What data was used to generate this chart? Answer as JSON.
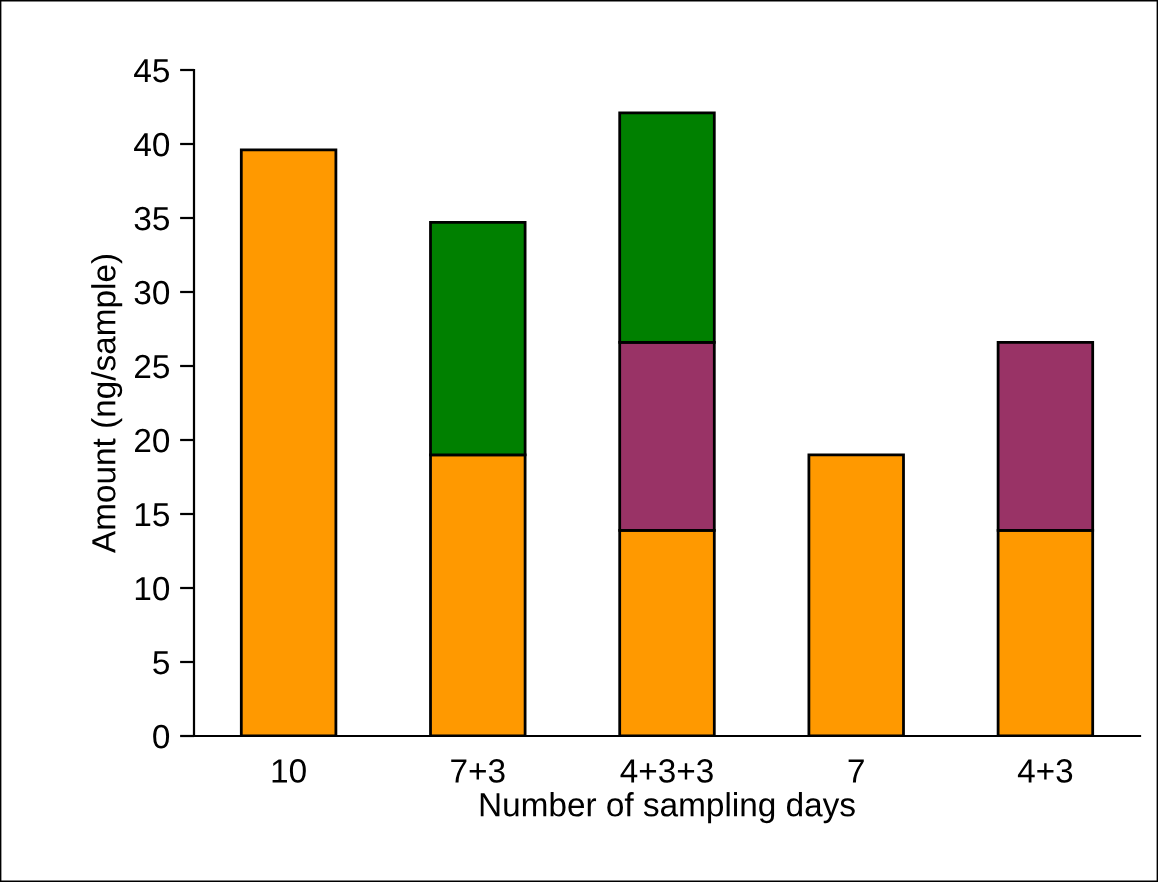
{
  "chart_data": {
    "type": "bar",
    "stacked": true,
    "xlabel": "Number of sampling days",
    "ylabel": "Amount (ng/sample)",
    "categories": [
      "10",
      "7+3",
      "4+3+3",
      "7",
      "4+3"
    ],
    "series": [
      {
        "color": "#ff9900",
        "values": [
          39.6,
          19,
          13.9,
          19,
          13.9
        ]
      },
      {
        "color": "#993366",
        "values": [
          null,
          null,
          12.7,
          null,
          12.7
        ]
      },
      {
        "color": "#008000",
        "values": [
          null,
          15.7,
          15.5,
          null,
          null
        ]
      }
    ],
    "ylim": [
      0,
      45
    ],
    "yticks": [
      0,
      5,
      10,
      15,
      20,
      25,
      30,
      35,
      40,
      45
    ],
    "grid": false
  }
}
